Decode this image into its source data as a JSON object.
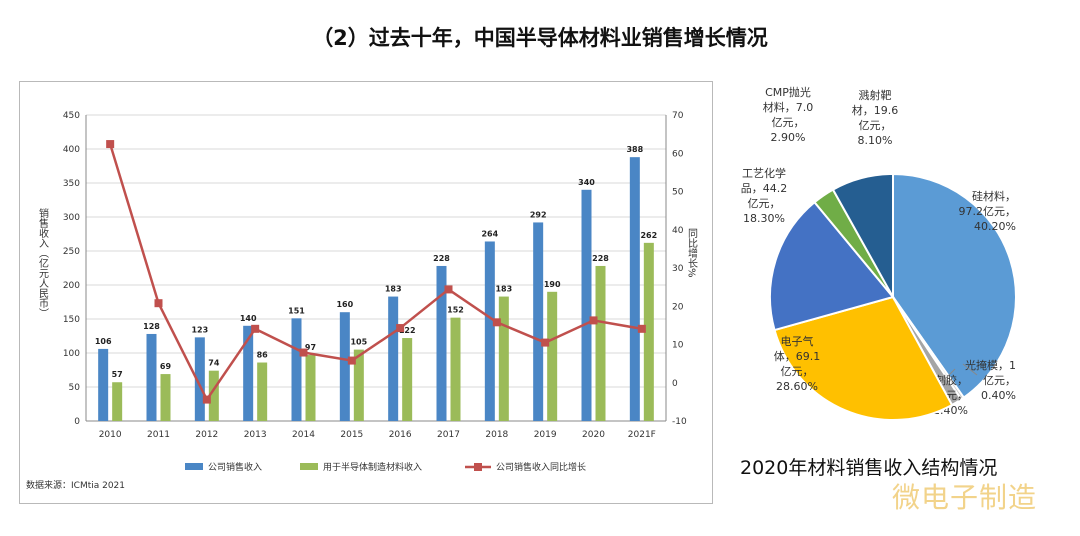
{
  "page": {
    "title": "（2）过去十年，中国半导体材料业销售增长情况",
    "pie_caption": "2020年材料销售收入结构情况",
    "watermark": "微电子制造"
  },
  "chart_data": [
    {
      "type": "bar",
      "categories": [
        "2010",
        "2011",
        "2012",
        "2013",
        "2014",
        "2015",
        "2016",
        "2017",
        "2018",
        "2019",
        "2020",
        "2021F"
      ],
      "series": [
        {
          "name": "公司销售收入",
          "type": "bar",
          "axis": "left",
          "color": "#4a86c5",
          "values": [
            106,
            128,
            123,
            140,
            151,
            160,
            183,
            228,
            264,
            292,
            340,
            388
          ]
        },
        {
          "name": "用于半导体制造材料收入",
          "type": "bar",
          "axis": "left",
          "color": "#9bbb59",
          "values": [
            57,
            69,
            74,
            86,
            97,
            105,
            122,
            152,
            183,
            190,
            228,
            262
          ]
        },
        {
          "name": "公司销售收入同比增长",
          "type": "line",
          "axis": "right",
          "color": "#c0504d",
          "values": [
            62.4,
            20.8,
            -4.4,
            14.1,
            7.9,
            5.8,
            14.3,
            24.4,
            15.8,
            10.5,
            16.3,
            14.1
          ]
        }
      ],
      "ylabel": "销售收入（亿元人民币）",
      "y2label": "同比增长%",
      "ylim": [
        0,
        450
      ],
      "yticks": [
        0,
        50,
        100,
        150,
        200,
        250,
        300,
        350,
        400,
        450
      ],
      "y2lim": [
        -10,
        70
      ],
      "y2ticks": [
        -10,
        0,
        10,
        20,
        30,
        40,
        50,
        60,
        70
      ],
      "source": "数据来源：ICMtia 2021",
      "grid": true,
      "legend": "bottom"
    },
    {
      "type": "pie",
      "slices": [
        {
          "label": [
            "硅材料，",
            "97.2亿元，",
            "40.20%"
          ],
          "value": 40.2,
          "color": "#5b9bd5"
        },
        {
          "label": [
            "光掩模，1",
            "亿元，",
            "0.40%"
          ],
          "value": 0.4,
          "color": "#c9c9c9"
        },
        {
          "label": [
            "光刻胶，",
            "3.4亿元，",
            "1.40%"
          ],
          "value": 1.4,
          "color": "#a5a5a5"
        },
        {
          "label": [
            "电子气",
            "体，69.1",
            "亿元，",
            "28.60%"
          ],
          "value": 28.6,
          "color": "#ffc000"
        },
        {
          "label": [
            "工艺化学",
            "品，44.2",
            "亿元，",
            "18.30%"
          ],
          "value": 18.3,
          "color": "#4472c4"
        },
        {
          "label": [
            "CMP抛光",
            "材料，7.0",
            "亿元，",
            "2.90%"
          ],
          "value": 2.9,
          "color": "#70ad47"
        },
        {
          "label": [
            "溅射靶",
            "材，19.6",
            "亿元，",
            "8.10%"
          ],
          "value": 8.1,
          "color": "#255e91"
        }
      ]
    }
  ]
}
